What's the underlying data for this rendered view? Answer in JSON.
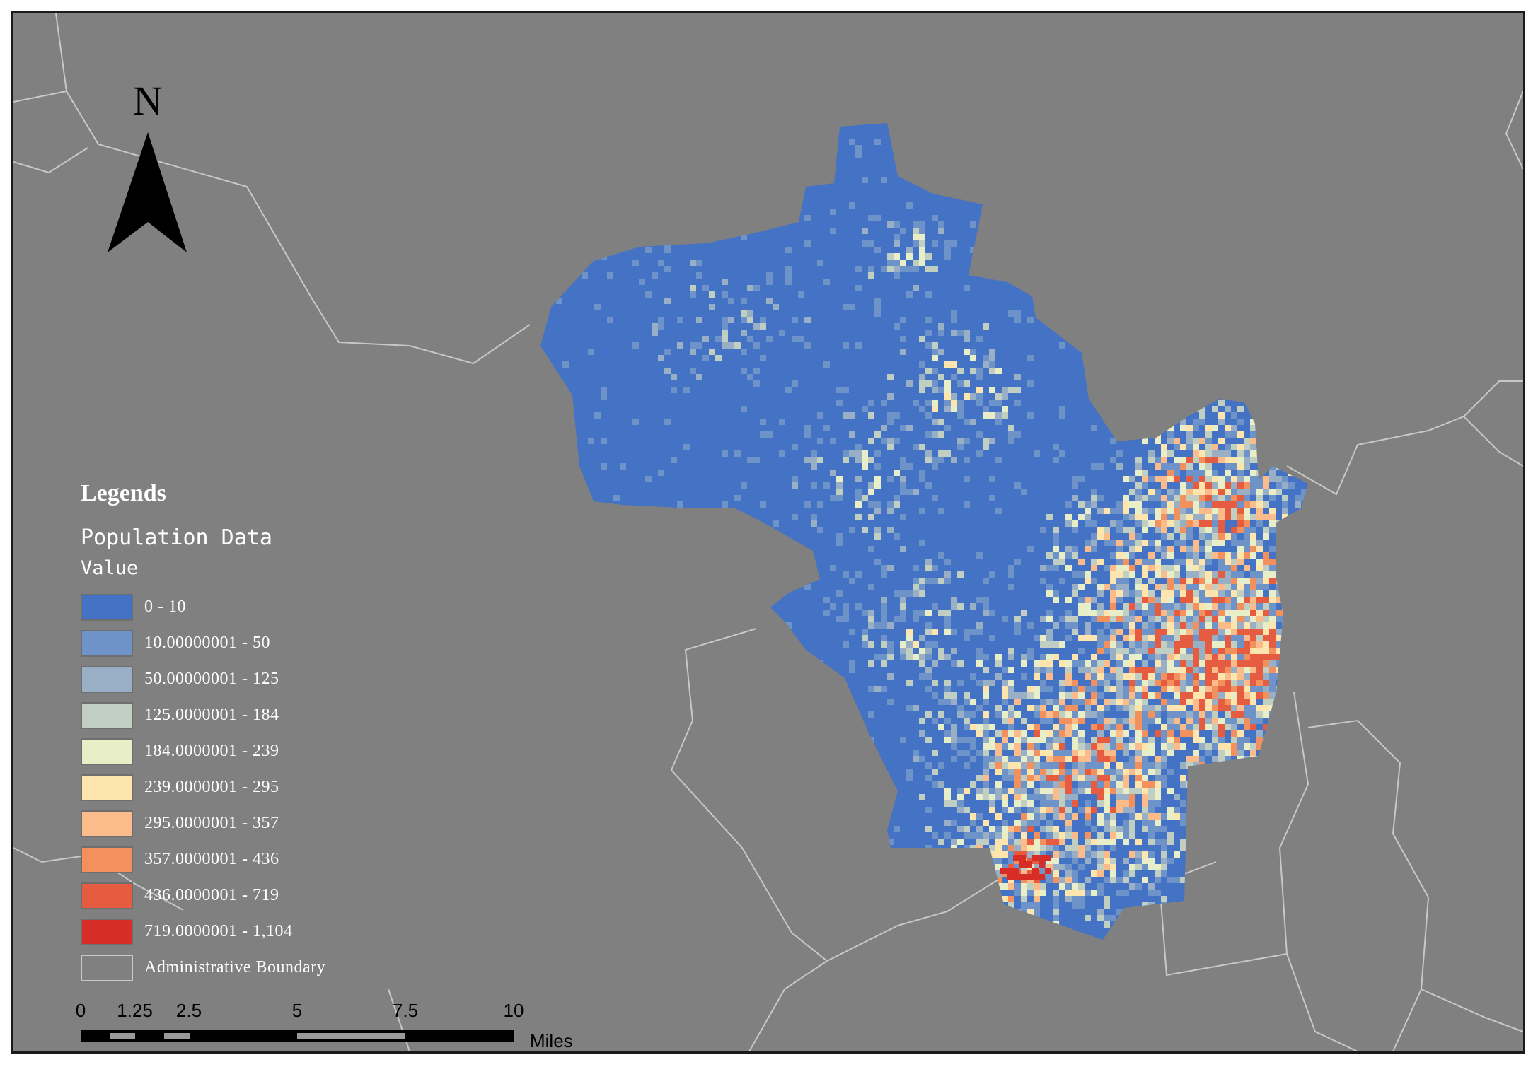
{
  "north_arrow": {
    "letter": "N"
  },
  "legend": {
    "title": "Legends",
    "layer_name": "Population Data",
    "field_name": "Value",
    "classes": [
      {
        "label": "0 - 10",
        "color": "#4472c4"
      },
      {
        "label": "10.00000001 - 50",
        "color": "#6d93c9"
      },
      {
        "label": "50.00000001 - 125",
        "color": "#98afc6"
      },
      {
        "label": "125.0000001 - 184",
        "color": "#c0cfc2"
      },
      {
        "label": "184.0000001 - 239",
        "color": "#e8eec8"
      },
      {
        "label": "239.0000001 - 295",
        "color": "#fde5ad"
      },
      {
        "label": "295.0000001 - 357",
        "color": "#fbbb8a"
      },
      {
        "label": "357.0000001 - 436",
        "color": "#f3915e"
      },
      {
        "label": "436.0000001 - 719",
        "color": "#e65c41"
      },
      {
        "label": "719.0000001 - 1,104",
        "color": "#d62d27"
      }
    ],
    "boundary_label": "Administrative Boundary"
  },
  "scale_bar": {
    "ticks": [
      "0",
      "1.25",
      "2.5",
      "5",
      "7.5",
      "10"
    ],
    "tick_values": [
      0,
      1.25,
      2.5,
      5,
      7.5,
      10
    ],
    "units": "Miles"
  },
  "colors": {
    "background": "#808080",
    "boundary_line": "#c8c8c8",
    "frame": "#1a1a1a"
  }
}
